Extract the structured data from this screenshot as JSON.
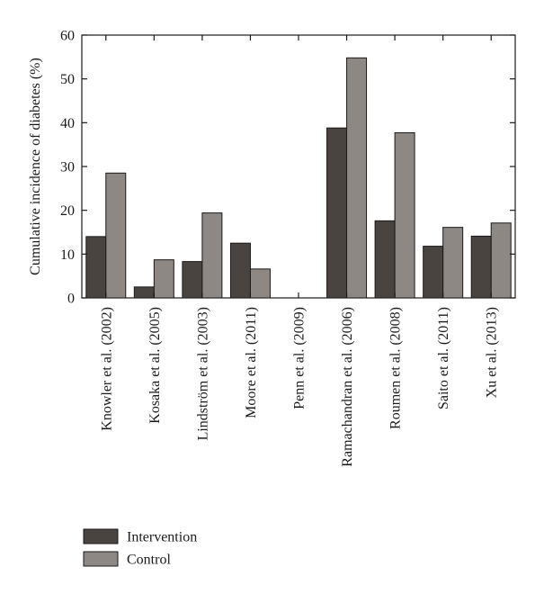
{
  "chart_data": {
    "type": "bar",
    "title": "",
    "xlabel": "",
    "ylabel": "Cumulative incidence of diabetes (%)",
    "ylim": [
      0,
      60
    ],
    "yticks": [
      0,
      10,
      20,
      30,
      40,
      50,
      60
    ],
    "categories": [
      "Knowler et al. (2002)",
      "Kosaka et al. (2005)",
      "Lindström et al. (2003)",
      "Moore et al. (2011)",
      "Penn et al. (2009)",
      "Ramachandran et al. (2006)",
      "Roumen et al. (2008)",
      "Saito et al. (2011)",
      "Xu et al. (2013)"
    ],
    "series": [
      {
        "name": "Intervention",
        "color": "#4a4441",
        "values": [
          14,
          2.5,
          8.3,
          12.5,
          0,
          38.8,
          17.6,
          11.8,
          14.1
        ]
      },
      {
        "name": "Control",
        "color": "#8e8885",
        "values": [
          28.5,
          8.7,
          19.4,
          6.6,
          0,
          54.8,
          37.7,
          16.1,
          17.1
        ]
      }
    ],
    "grid": false,
    "legend_position": "bottom-left"
  }
}
